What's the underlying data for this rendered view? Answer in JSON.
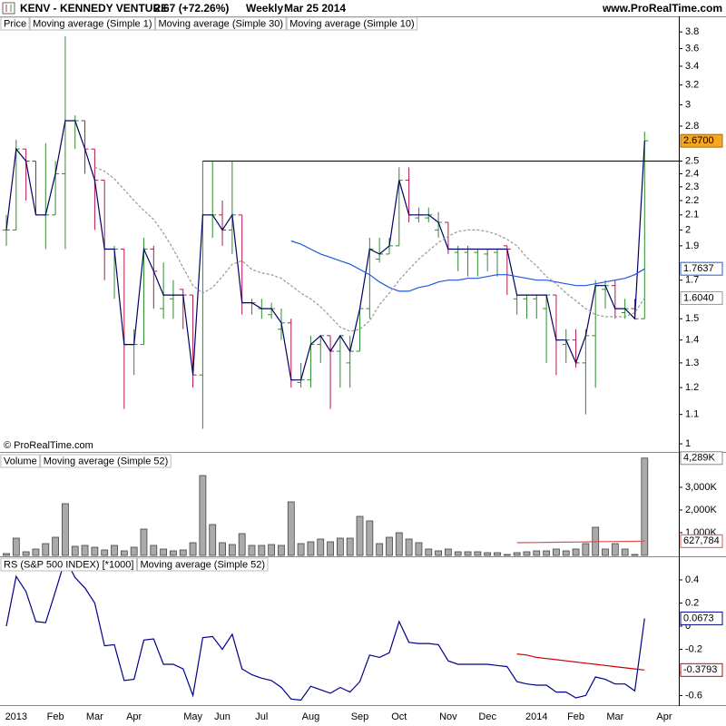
{
  "header": {
    "symbol": "KENV - KENNEDY VENTURE",
    "quote": "2.67 (+72.26%)",
    "period": "Weekly",
    "date": "Mar 25 2014",
    "site": "www.ProRealTime.com"
  },
  "chart_data": [
    {
      "type": "ohlc",
      "panel_label": "Price",
      "copyright": "© ProRealTime.com",
      "log_scale": true,
      "ylim": [
        0.977,
        3.997
      ],
      "yticks": [
        1,
        1.1,
        1.2,
        1.3,
        1.4,
        1.5,
        1.7,
        1.9,
        2,
        2.1,
        2.2,
        2.3,
        2.4,
        2.5,
        2.8,
        3,
        3.2,
        3.4,
        3.6,
        3.8
      ],
      "up_color": "#2e8b2e",
      "down_color": "#b0174e",
      "last_label": "2.6700",
      "label_color": "#f5a623",
      "hline": {
        "value": 2.5,
        "start": 20,
        "color": "#000000"
      },
      "open": [
        2.0,
        2.0,
        2.6,
        2.5,
        2.1,
        2.1,
        2.4,
        2.85,
        2.85,
        2.6,
        2.35,
        1.88,
        1.88,
        1.38,
        1.38,
        1.88,
        1.55,
        1.6,
        1.65,
        1.62,
        1.25,
        2.1,
        2.1,
        2.0,
        2.1,
        1.58,
        1.55,
        1.52,
        1.45,
        1.48,
        1.22,
        1.23,
        1.38,
        1.42,
        1.35,
        1.3,
        1.35,
        1.55,
        1.82,
        1.85,
        1.9,
        2.35,
        2.08,
        2.08,
        2.0,
        2.05,
        1.86,
        1.86,
        1.86,
        1.85,
        1.86,
        1.9,
        1.6,
        1.6,
        1.6,
        1.55,
        1.62,
        1.38,
        1.4,
        1.3,
        1.42,
        1.65,
        1.67,
        1.53,
        1.55,
        1.5,
        null,
        null
      ],
      "high": [
        2.1,
        2.68,
        2.6,
        2.5,
        2.65,
        2.5,
        3.75,
        2.9,
        2.85,
        2.6,
        2.35,
        1.9,
        1.88,
        1.45,
        1.95,
        1.9,
        1.8,
        1.7,
        1.65,
        1.62,
        2.5,
        2.5,
        2.2,
        2.5,
        2.1,
        1.6,
        1.6,
        1.58,
        1.55,
        1.5,
        1.3,
        1.42,
        1.42,
        1.42,
        1.42,
        1.42,
        1.55,
        1.95,
        1.95,
        1.95,
        2.45,
        2.45,
        2.15,
        2.15,
        2.12,
        2.05,
        1.9,
        1.9,
        1.88,
        1.88,
        1.88,
        1.9,
        1.62,
        1.62,
        1.62,
        1.62,
        1.62,
        1.45,
        1.45,
        1.45,
        1.7,
        1.7,
        1.7,
        1.6,
        1.6,
        2.75,
        null,
        null
      ],
      "low": [
        1.9,
        2.0,
        2.2,
        2.1,
        1.88,
        2.1,
        1.88,
        2.6,
        2.4,
        2.0,
        1.7,
        1.6,
        1.12,
        1.25,
        1.38,
        1.55,
        1.5,
        1.5,
        1.45,
        1.2,
        1.05,
        1.95,
        1.9,
        1.85,
        1.52,
        1.52,
        1.5,
        1.5,
        1.4,
        1.2,
        1.2,
        1.2,
        1.3,
        1.12,
        1.2,
        1.2,
        1.35,
        1.5,
        1.8,
        1.85,
        1.9,
        2.05,
        2.05,
        2.05,
        1.95,
        1.85,
        1.75,
        1.72,
        1.72,
        1.75,
        1.72,
        1.62,
        1.52,
        1.5,
        1.5,
        1.3,
        1.25,
        1.3,
        1.28,
        1.1,
        1.2,
        1.55,
        1.5,
        1.5,
        1.5,
        1.5,
        null,
        null
      ],
      "close": [
        2.0,
        2.6,
        2.5,
        2.1,
        2.1,
        2.4,
        2.85,
        2.85,
        2.6,
        2.35,
        1.88,
        1.88,
        1.38,
        1.38,
        1.88,
        1.75,
        1.62,
        1.62,
        1.62,
        1.25,
        2.1,
        2.1,
        2.0,
        2.1,
        1.58,
        1.58,
        1.55,
        1.55,
        1.48,
        1.23,
        1.23,
        1.38,
        1.42,
        1.35,
        1.42,
        1.35,
        1.55,
        1.88,
        1.85,
        1.9,
        2.35,
        2.1,
        2.1,
        2.1,
        2.05,
        1.88,
        1.88,
        1.88,
        1.88,
        1.88,
        1.88,
        1.88,
        1.62,
        1.62,
        1.62,
        1.62,
        1.4,
        1.4,
        1.3,
        1.42,
        1.67,
        1.67,
        1.55,
        1.55,
        1.5,
        2.67,
        null,
        null
      ],
      "series": [
        {
          "name": "Moving average (Simple 1)",
          "color": "#000066",
          "values": [
            2.0,
            2.6,
            2.5,
            2.1,
            2.1,
            2.4,
            2.85,
            2.85,
            2.6,
            2.35,
            1.88,
            1.88,
            1.38,
            1.38,
            1.88,
            1.75,
            1.62,
            1.62,
            1.62,
            1.25,
            2.1,
            2.1,
            2.0,
            2.1,
            1.58,
            1.58,
            1.55,
            1.55,
            1.48,
            1.23,
            1.23,
            1.38,
            1.42,
            1.35,
            1.42,
            1.35,
            1.55,
            1.88,
            1.85,
            1.9,
            2.35,
            2.1,
            2.1,
            2.1,
            2.05,
            1.88,
            1.88,
            1.88,
            1.88,
            1.88,
            1.88,
            1.88,
            1.62,
            1.62,
            1.62,
            1.62,
            1.4,
            1.4,
            1.3,
            1.42,
            1.67,
            1.67,
            1.55,
            1.55,
            1.5,
            2.67,
            null,
            null
          ]
        },
        {
          "name": "Moving average (Simple 30)",
          "color": "#2255dd",
          "last_label": "1.7637",
          "values": [
            null,
            null,
            null,
            null,
            null,
            null,
            null,
            null,
            null,
            null,
            null,
            null,
            null,
            null,
            null,
            null,
            null,
            null,
            null,
            null,
            null,
            null,
            null,
            null,
            null,
            null,
            null,
            null,
            null,
            1.93,
            1.91,
            1.88,
            1.85,
            1.83,
            1.81,
            1.79,
            1.76,
            1.73,
            1.69,
            1.66,
            1.64,
            1.64,
            1.66,
            1.67,
            1.69,
            1.7,
            1.7,
            1.71,
            1.71,
            1.72,
            1.73,
            1.73,
            1.72,
            1.71,
            1.7,
            1.7,
            1.69,
            1.68,
            1.67,
            1.67,
            1.68,
            1.69,
            1.7,
            1.71,
            1.73,
            1.7637,
            null,
            null
          ]
        },
        {
          "name": "Moving average (Simple 10)",
          "color": "#999999",
          "dashed": true,
          "last_label": "1.6040",
          "values": [
            null,
            null,
            null,
            null,
            null,
            null,
            null,
            null,
            null,
            2.45,
            2.42,
            2.36,
            2.28,
            2.2,
            2.13,
            2.07,
            1.98,
            1.88,
            1.77,
            1.67,
            1.63,
            1.66,
            1.72,
            1.79,
            1.81,
            1.76,
            1.74,
            1.73,
            1.71,
            1.67,
            1.63,
            1.6,
            1.56,
            1.51,
            1.46,
            1.44,
            1.45,
            1.49,
            1.57,
            1.63,
            1.7,
            1.76,
            1.82,
            1.87,
            1.92,
            1.96,
            1.99,
            2.0,
            2.0,
            1.99,
            1.97,
            1.94,
            1.9,
            1.83,
            1.78,
            1.72,
            1.68,
            1.63,
            1.59,
            1.55,
            1.52,
            1.51,
            1.51,
            1.51,
            1.53,
            1.604,
            null,
            null
          ]
        }
      ]
    },
    {
      "type": "bar",
      "panel_label": "Volume",
      "color": "#aaaaaa",
      "last_label": "4,289K",
      "ylim": [
        0,
        4480
      ],
      "yticks": [
        {
          "value": 1000,
          "label": "1,000K"
        },
        {
          "value": 2000,
          "label": "2,000K"
        },
        {
          "value": 3000,
          "label": "3,000K"
        }
      ],
      "values": [
        80,
        760,
        160,
        280,
        520,
        800,
        2280,
        400,
        440,
        360,
        240,
        440,
        200,
        360,
        1160,
        440,
        280,
        200,
        240,
        560,
        3520,
        1360,
        560,
        480,
        960,
        440,
        440,
        480,
        440,
        2360,
        520,
        600,
        720,
        600,
        760,
        760,
        1720,
        1520,
        520,
        800,
        1000,
        720,
        560,
        280,
        200,
        280,
        160,
        160,
        160,
        120,
        120,
        40,
        120,
        160,
        200,
        200,
        280,
        200,
        280,
        520,
        1240,
        280,
        520,
        280,
        40,
        4289,
        null,
        null
      ],
      "series": [
        {
          "name": "Moving average (Simple 52)",
          "color": "#e05050",
          "last_label": "627,784",
          "values": [
            null,
            null,
            null,
            null,
            null,
            null,
            null,
            null,
            null,
            null,
            null,
            null,
            null,
            null,
            null,
            null,
            null,
            null,
            null,
            null,
            null,
            null,
            null,
            null,
            null,
            null,
            null,
            null,
            null,
            null,
            null,
            null,
            null,
            null,
            null,
            null,
            null,
            null,
            null,
            null,
            null,
            null,
            null,
            null,
            null,
            null,
            null,
            null,
            null,
            null,
            null,
            null,
            560,
            565,
            570,
            575,
            580,
            585,
            590,
            595,
            605,
            610,
            612,
            615,
            618,
            627.784,
            null,
            null
          ]
        }
      ]
    },
    {
      "type": "line",
      "ylim": [
        -0.675,
        0.596
      ],
      "yticks": [
        0.4,
        0.2,
        0,
        -0.2,
        -0.4,
        -0.6
      ],
      "categories": [
        null,
        "2013",
        null,
        null,
        null,
        "Feb",
        null,
        null,
        null,
        "Mar",
        null,
        null,
        null,
        "Apr",
        null,
        null,
        null,
        null,
        null,
        "May",
        null,
        null,
        "Jun",
        null,
        null,
        null,
        "Jul",
        null,
        null,
        null,
        null,
        "Aug",
        null,
        null,
        null,
        null,
        "Sep",
        null,
        null,
        null,
        "Oct",
        null,
        null,
        null,
        null,
        "Nov",
        null,
        null,
        null,
        "Dec",
        null,
        null,
        null,
        null,
        "2014",
        null,
        null,
        null,
        "Feb",
        null,
        null,
        null,
        "Mar",
        null,
        null,
        null,
        null,
        "Apr"
      ],
      "series": [
        {
          "name": "RS (S&P 500 INDEX) [*1000]",
          "color": "#00008b",
          "last_label": "0.0673",
          "values": [
            0.0,
            0.43,
            0.3,
            0.04,
            0.03,
            0.3,
            0.58,
            0.42,
            0.33,
            0.2,
            -0.17,
            -0.16,
            -0.47,
            -0.46,
            -0.12,
            -0.11,
            -0.33,
            -0.33,
            -0.37,
            -0.6,
            -0.1,
            -0.09,
            -0.2,
            -0.07,
            -0.37,
            -0.42,
            -0.45,
            -0.47,
            -0.53,
            -0.63,
            -0.64,
            -0.52,
            -0.55,
            -0.58,
            -0.53,
            -0.57,
            -0.48,
            -0.25,
            -0.27,
            -0.23,
            0.04,
            -0.14,
            -0.15,
            -0.15,
            -0.16,
            -0.3,
            -0.33,
            -0.33,
            -0.33,
            -0.33,
            -0.34,
            -0.35,
            -0.48,
            -0.5,
            -0.51,
            -0.51,
            -0.57,
            -0.57,
            -0.62,
            -0.6,
            -0.44,
            -0.46,
            -0.5,
            -0.5,
            -0.56,
            0.0673,
            null,
            null
          ]
        },
        {
          "name": "Moving average (Simple 52)",
          "color": "#cc0000",
          "last_label": "-0.3793",
          "values": [
            null,
            null,
            null,
            null,
            null,
            null,
            null,
            null,
            null,
            null,
            null,
            null,
            null,
            null,
            null,
            null,
            null,
            null,
            null,
            null,
            null,
            null,
            null,
            null,
            null,
            null,
            null,
            null,
            null,
            null,
            null,
            null,
            null,
            null,
            null,
            null,
            null,
            null,
            null,
            null,
            null,
            null,
            null,
            null,
            null,
            null,
            null,
            null,
            null,
            null,
            null,
            null,
            -0.24,
            -0.25,
            -0.27,
            -0.28,
            -0.29,
            -0.3,
            -0.31,
            -0.32,
            -0.33,
            -0.34,
            -0.35,
            -0.36,
            -0.37,
            -0.3793,
            null,
            null
          ]
        }
      ]
    }
  ]
}
